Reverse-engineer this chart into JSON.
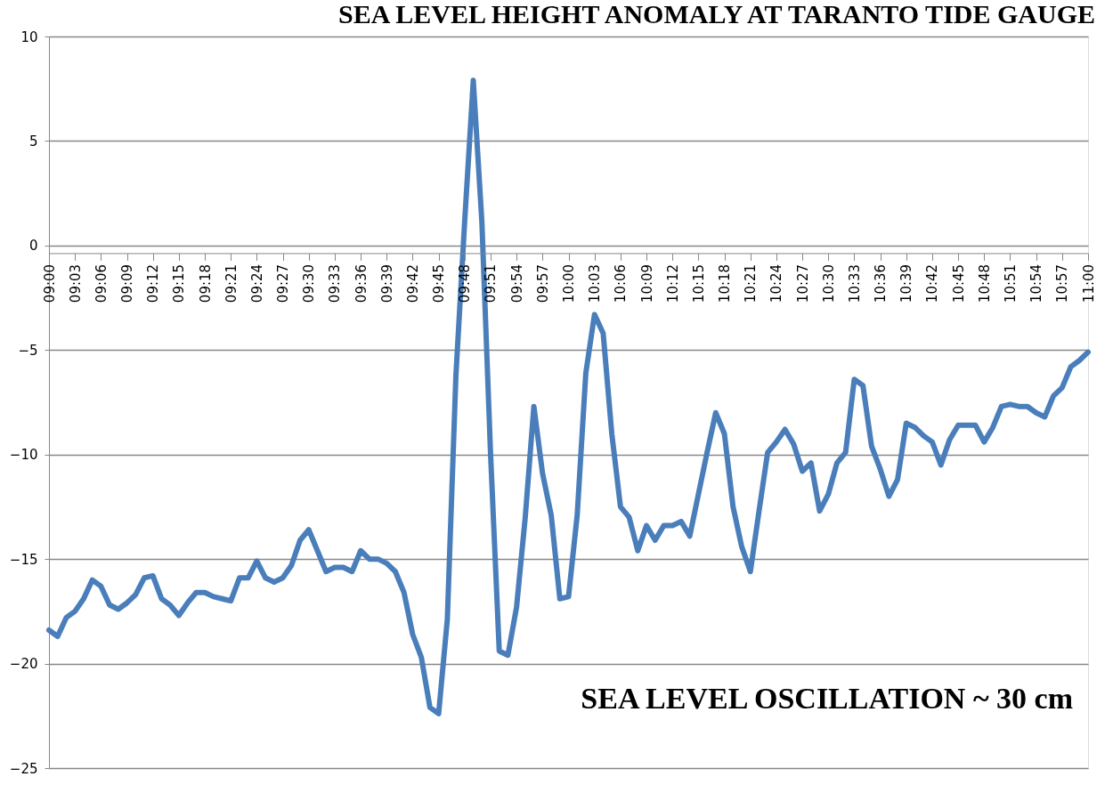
{
  "chart_data": {
    "type": "line",
    "title": "SEA LEVEL HEIGHT ANOMALY AT TARANTO TIDE GAUGE",
    "annotations": [
      "SEA LEVEL OSCILLATION ~ 30 cm"
    ],
    "x": [
      9.0,
      9.0167,
      9.0333,
      9.05,
      9.0667,
      9.0833,
      9.1,
      9.1167,
      9.1333,
      9.15,
      9.1667,
      9.1833,
      9.2,
      9.2167,
      9.2333,
      9.25,
      9.2667,
      9.2833,
      9.3,
      9.3167,
      9.3333,
      9.35,
      9.3667,
      9.3833,
      9.4,
      9.4167,
      9.4333,
      9.45,
      9.4667,
      9.4833,
      9.5,
      9.5167,
      9.5333,
      9.55,
      9.5667,
      9.5833,
      9.6,
      9.6167,
      9.6333,
      9.65,
      9.6667,
      9.6833,
      9.7,
      9.7167,
      9.7333,
      9.75,
      9.7667,
      9.7833,
      9.8,
      9.8167,
      9.8333,
      9.85,
      9.8667,
      9.8833,
      9.9,
      9.9167,
      9.9333,
      9.95,
      9.9667,
      9.9833,
      10.0,
      10.0167,
      10.0333,
      10.05,
      10.0667,
      10.0833,
      10.1,
      10.1167,
      10.1333,
      10.15,
      10.1667,
      10.1833,
      10.2,
      10.2167,
      10.2333,
      10.25,
      10.2667,
      10.2833,
      10.3,
      10.3167,
      10.3333,
      10.35,
      10.3667,
      10.3833,
      10.4,
      10.4167,
      10.4333,
      10.45,
      10.4667,
      10.4833,
      10.5,
      10.5167,
      10.5333,
      10.55,
      10.5667,
      10.5833,
      10.6,
      10.6167,
      10.6333,
      10.65,
      10.6667,
      10.6833,
      10.7,
      10.7167,
      10.7333,
      10.75,
      10.7667,
      10.7833,
      10.8,
      10.8167,
      10.8333,
      10.85,
      10.8667,
      10.8833,
      10.9,
      10.9167,
      10.9333,
      10.95,
      10.9667,
      10.9833,
      11.0
    ],
    "series": [
      {
        "color": "#4a7ebb",
        "values": [
          -18.4,
          -18.7,
          -17.8,
          -17.5,
          -16.9,
          -16.0,
          -16.3,
          -17.2,
          -17.4,
          -17.1,
          -16.7,
          -15.9,
          -15.8,
          -16.9,
          -17.2,
          -17.7,
          -17.1,
          -16.6,
          -16.6,
          -16.8,
          -16.9,
          -17.0,
          -15.9,
          -15.9,
          -15.1,
          -15.9,
          -16.1,
          -15.9,
          -15.3,
          -14.1,
          -13.6,
          -14.6,
          -15.6,
          -15.4,
          -15.4,
          -15.6,
          -14.6,
          -15.0,
          -15.0,
          -15.2,
          -15.6,
          -16.6,
          -18.6,
          -19.7,
          -22.1,
          -22.4,
          -17.9,
          -6.2,
          1.1,
          7.9,
          1.1,
          -10.0,
          -19.4,
          -19.6,
          -17.3,
          -13.0,
          -7.7,
          -10.9,
          -12.9,
          -16.9,
          -16.8,
          -12.9,
          -6.1,
          -3.3,
          -4.2,
          -9.0,
          -12.5,
          -13.0,
          -14.6,
          -13.4,
          -14.1,
          -13.4,
          -13.4,
          -13.2,
          -13.9,
          -11.9,
          -9.9,
          -8.0,
          -9.0,
          -12.5,
          -14.4,
          -15.6,
          -12.7,
          -9.9,
          -9.4,
          -8.8,
          -9.5,
          -10.8,
          -10.4,
          -12.7,
          -11.9,
          -10.4,
          -9.9,
          -6.4,
          -6.7,
          -9.6,
          -10.7,
          -12.0,
          -11.2,
          -8.5,
          -8.7,
          -9.1,
          -9.4,
          -10.5,
          -9.3,
          -8.6,
          -8.6,
          -8.6,
          -9.4,
          -8.7,
          -7.7,
          -7.6,
          -7.7,
          -7.7,
          -8.0,
          -8.2,
          -7.2,
          -6.8,
          -5.8,
          -5.5,
          -5.1
        ]
      }
    ],
    "xlim": [
      9.0,
      11.0
    ],
    "xticks": [
      {
        "value": 9.0,
        "label": "09:00"
      },
      {
        "value": 9.05,
        "label": "09:03"
      },
      {
        "value": 9.1,
        "label": "09:06"
      },
      {
        "value": 9.15,
        "label": "09:09"
      },
      {
        "value": 9.2,
        "label": "09:12"
      },
      {
        "value": 9.25,
        "label": "09:15"
      },
      {
        "value": 9.3,
        "label": "09:18"
      },
      {
        "value": 9.35,
        "label": "09:21"
      },
      {
        "value": 9.4,
        "label": "09:24"
      },
      {
        "value": 9.45,
        "label": "09:27"
      },
      {
        "value": 9.5,
        "label": "09:30"
      },
      {
        "value": 9.55,
        "label": "09:33"
      },
      {
        "value": 9.6,
        "label": "09:36"
      },
      {
        "value": 9.65,
        "label": "09:39"
      },
      {
        "value": 9.7,
        "label": "09:42"
      },
      {
        "value": 9.75,
        "label": "09:45"
      },
      {
        "value": 9.8,
        "label": "09:48"
      },
      {
        "value": 9.85,
        "label": "09:51"
      },
      {
        "value": 9.9,
        "label": "09:54"
      },
      {
        "value": 9.95,
        "label": "09:57"
      },
      {
        "value": 10.0,
        "label": "10:00"
      },
      {
        "value": 10.05,
        "label": "10:03"
      },
      {
        "value": 10.1,
        "label": "10:06"
      },
      {
        "value": 10.15,
        "label": "10:09"
      },
      {
        "value": 10.2,
        "label": "10:12"
      },
      {
        "value": 10.25,
        "label": "10:15"
      },
      {
        "value": 10.3,
        "label": "10:18"
      },
      {
        "value": 10.35,
        "label": "10:21"
      },
      {
        "value": 10.4,
        "label": "10:24"
      },
      {
        "value": 10.45,
        "label": "10:27"
      },
      {
        "value": 10.5,
        "label": "10:30"
      },
      {
        "value": 10.55,
        "label": "10:33"
      },
      {
        "value": 10.6,
        "label": "10:36"
      },
      {
        "value": 10.65,
        "label": "10:39"
      },
      {
        "value": 10.7,
        "label": "10:42"
      },
      {
        "value": 10.75,
        "label": "10:45"
      },
      {
        "value": 10.8,
        "label": "10:48"
      },
      {
        "value": 10.85,
        "label": "10:51"
      },
      {
        "value": 10.9,
        "label": "10:54"
      },
      {
        "value": 10.95,
        "label": "10:57"
      },
      {
        "value": 11.0,
        "label": "11:00"
      }
    ],
    "ylim": [
      -25,
      10
    ],
    "yticks": [
      -25,
      -20,
      -15,
      -10,
      -5,
      0,
      5,
      10
    ],
    "grid": "y",
    "legend": false,
    "marker": "none",
    "line_style": "solid"
  }
}
